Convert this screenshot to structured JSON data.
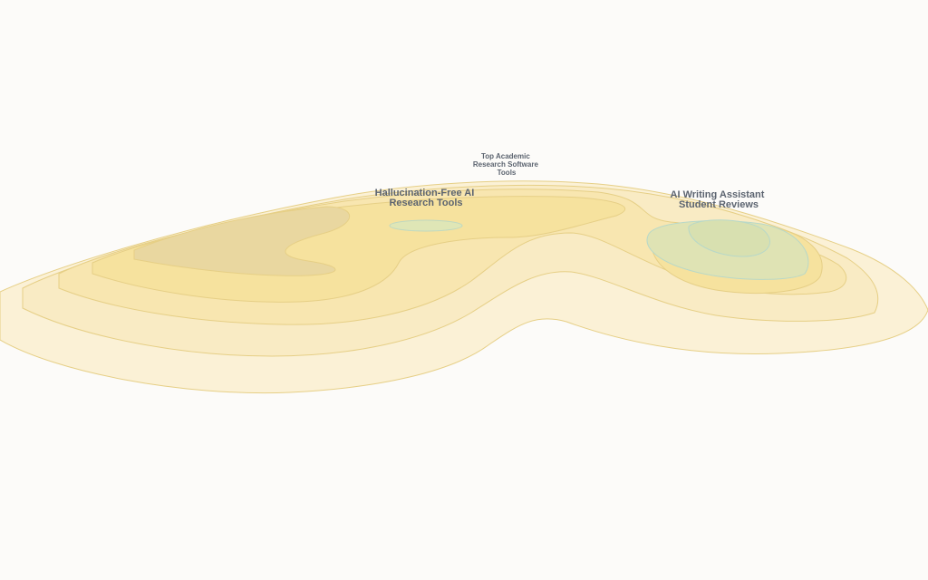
{
  "labels": [
    {
      "lines": [
        "Top Academic",
        "Research Software",
        "Tools"
      ]
    },
    {
      "lines": [
        "Hallucination-Free AI",
        "Research Tools"
      ]
    },
    {
      "lines": [
        "AI Writing Assistant",
        "Student Reviews"
      ]
    }
  ]
}
